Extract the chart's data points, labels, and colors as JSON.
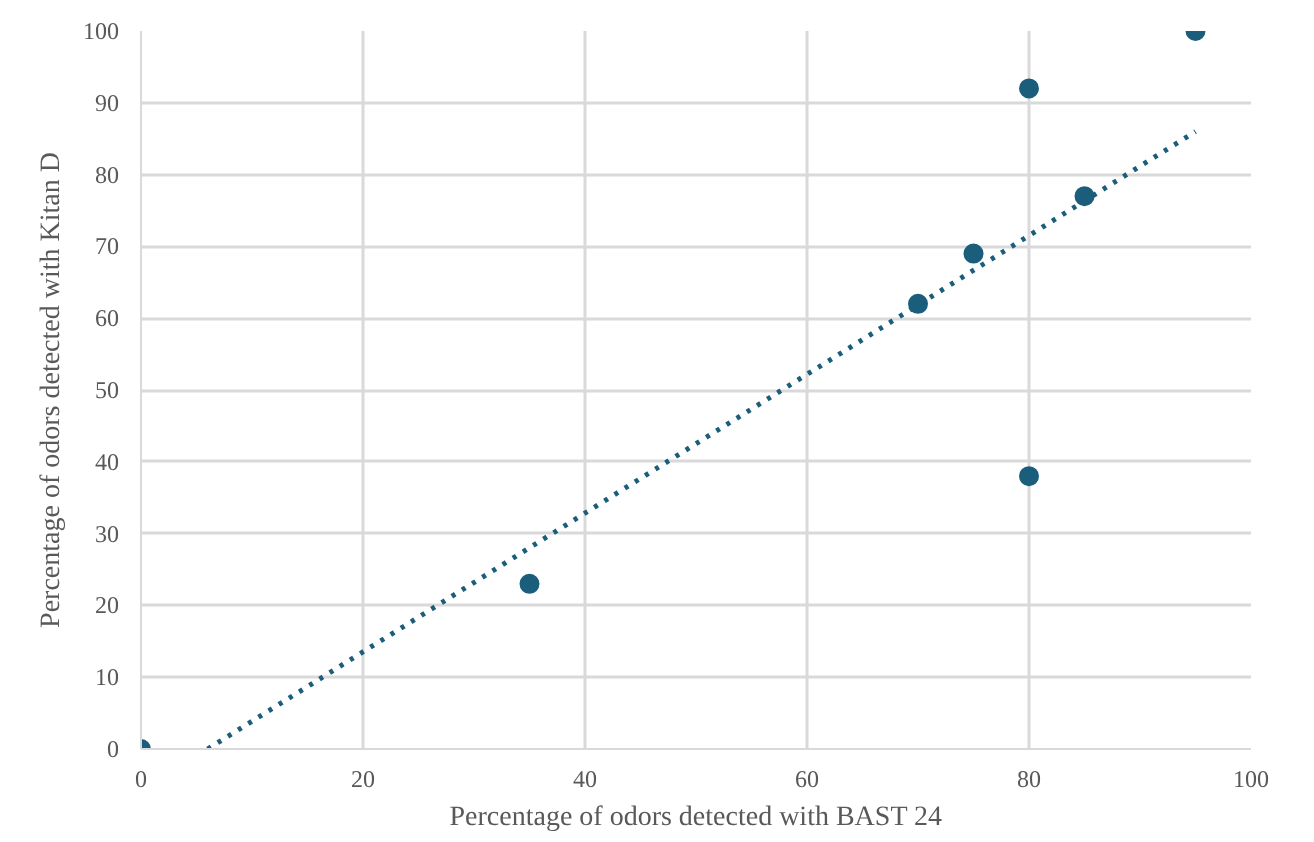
{
  "chart_data": {
    "type": "scatter",
    "xlabel": "Percentage of odors detected with BAST 24",
    "ylabel": "Percentage of odors detected with Kitan D",
    "series": [
      {
        "color": "#1b5e7b",
        "marker": "circle",
        "x": [
          0,
          35,
          70,
          75,
          80,
          80,
          85,
          95
        ],
        "values": [
          0,
          23,
          62,
          69,
          92,
          38,
          77,
          100
        ]
      },
      {
        "type": "line",
        "color": "#1b5e7b",
        "line_style": "dotted",
        "marker": "none",
        "x": [
          6,
          95
        ],
        "values": [
          0,
          86
        ]
      }
    ],
    "xlim": [
      0,
      100
    ],
    "ylim": [
      0,
      100
    ],
    "xticks": [
      0,
      20,
      40,
      60,
      80,
      100
    ],
    "yticks": [
      0,
      10,
      20,
      30,
      40,
      50,
      60,
      70,
      80,
      90,
      100
    ],
    "grid": true
  }
}
